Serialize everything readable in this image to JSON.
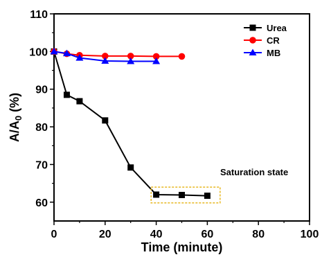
{
  "chart_data": {
    "type": "line",
    "xlabel": "Time (minute)",
    "ylabel_main": "A/A",
    "ylabel_sub": "0",
    "ylabel_unit": " (%)",
    "xlim": [
      0,
      100
    ],
    "ylim": [
      55,
      110
    ],
    "xticks": [
      0,
      20,
      40,
      60,
      80,
      100
    ],
    "yticks": [
      60,
      70,
      80,
      90,
      100,
      110
    ],
    "legend_position": "top-right",
    "series": [
      {
        "name": "Urea",
        "color": "#000000",
        "marker": "square",
        "x": [
          0,
          5,
          10,
          20,
          30,
          40,
          50,
          60
        ],
        "y": [
          100,
          88.5,
          86.8,
          81.7,
          69.2,
          62.0,
          61.9,
          61.7
        ]
      },
      {
        "name": "CR",
        "color": "#ff0000",
        "marker": "circle",
        "x": [
          0,
          5,
          10,
          20,
          30,
          40,
          50
        ],
        "y": [
          100,
          99.4,
          99.0,
          98.8,
          98.8,
          98.7,
          98.7
        ]
      },
      {
        "name": "MB",
        "color": "#0000ff",
        "marker": "triangle",
        "x": [
          0,
          5,
          10,
          20,
          30,
          40
        ],
        "y": [
          100,
          99.5,
          98.3,
          97.5,
          97.4,
          97.4
        ]
      }
    ],
    "annotation": {
      "text": "Saturation state",
      "box_x": [
        38,
        65
      ],
      "box_y": [
        59.8,
        64.0
      ],
      "box_color": "#e8b820"
    }
  }
}
